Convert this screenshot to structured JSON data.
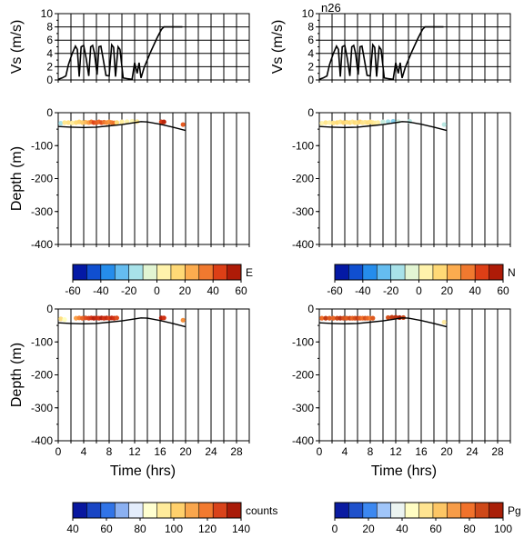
{
  "figure_title": "n26",
  "chart_data": [
    {
      "type": "line",
      "id": "vs-left",
      "ylabel": "Vs (m/s)",
      "ylim": [
        0,
        10
      ],
      "yticks": [
        0,
        2,
        4,
        6,
        8,
        10
      ],
      "xlim": [
        0,
        30
      ],
      "grid": true,
      "series": [
        {
          "values": [
            [
              0,
              0.1
            ],
            [
              0.6,
              0.3
            ],
            [
              1.2,
              0.6
            ],
            [
              1.6,
              2.3
            ],
            [
              2.2,
              4.0
            ],
            [
              2.7,
              5.1
            ],
            [
              3.0,
              4.6
            ],
            [
              3.3,
              0.5
            ],
            [
              3.6,
              5.0
            ],
            [
              4.0,
              5.2
            ],
            [
              4.4,
              3.2
            ],
            [
              4.8,
              0.6
            ],
            [
              5.1,
              5.0
            ],
            [
              5.4,
              5.2
            ],
            [
              5.7,
              4.0
            ],
            [
              6.1,
              0.8
            ],
            [
              6.4,
              5.0
            ],
            [
              6.7,
              5.1
            ],
            [
              7.0,
              3.5
            ],
            [
              7.5,
              0.7
            ],
            [
              8.0,
              0.6
            ],
            [
              8.4,
              5.3
            ],
            [
              8.7,
              4.9
            ],
            [
              9.0,
              0.5
            ],
            [
              9.4,
              5.0
            ],
            [
              9.7,
              4.6
            ],
            [
              10.2,
              0.3
            ],
            [
              10.8,
              0.2
            ],
            [
              11.6,
              0.1
            ],
            [
              12.0,
              2.6
            ],
            [
              12.4,
              1.0
            ],
            [
              12.7,
              2.6
            ],
            [
              13.0,
              0.3
            ],
            [
              13.5,
              1.9
            ],
            [
              14.5,
              4.2
            ],
            [
              15.5,
              6.3
            ],
            [
              16.2,
              7.6
            ],
            [
              16.6,
              8.0
            ],
            [
              17.5,
              8.0
            ],
            [
              19.5,
              8.0
            ]
          ]
        }
      ]
    },
    {
      "type": "line",
      "id": "vs-right",
      "ylabel": "Vs (m/s)",
      "ylim": [
        0,
        10
      ],
      "yticks": [
        0,
        2,
        4,
        6,
        8,
        10
      ],
      "xlim": [
        0,
        30
      ],
      "grid": true,
      "series": [
        {
          "values": [
            [
              0,
              0.1
            ],
            [
              0.6,
              0.3
            ],
            [
              1.2,
              0.6
            ],
            [
              1.6,
              2.3
            ],
            [
              2.2,
              4.0
            ],
            [
              2.7,
              5.1
            ],
            [
              3.0,
              4.6
            ],
            [
              3.3,
              0.5
            ],
            [
              3.6,
              5.0
            ],
            [
              4.0,
              5.2
            ],
            [
              4.4,
              3.2
            ],
            [
              4.8,
              0.6
            ],
            [
              5.1,
              5.0
            ],
            [
              5.4,
              5.2
            ],
            [
              5.7,
              4.0
            ],
            [
              6.1,
              0.8
            ],
            [
              6.4,
              5.0
            ],
            [
              6.7,
              5.1
            ],
            [
              7.0,
              3.5
            ],
            [
              7.5,
              0.7
            ],
            [
              8.0,
              0.6
            ],
            [
              8.4,
              5.3
            ],
            [
              8.7,
              4.9
            ],
            [
              9.0,
              0.5
            ],
            [
              9.4,
              5.0
            ],
            [
              9.7,
              4.6
            ],
            [
              10.2,
              0.3
            ],
            [
              10.8,
              0.2
            ],
            [
              11.6,
              0.1
            ],
            [
              12.0,
              2.6
            ],
            [
              12.4,
              1.0
            ],
            [
              12.7,
              2.6
            ],
            [
              13.0,
              0.3
            ],
            [
              13.5,
              1.9
            ],
            [
              14.5,
              4.2
            ],
            [
              15.5,
              6.3
            ],
            [
              16.2,
              7.6
            ],
            [
              16.6,
              8.0
            ],
            [
              17.5,
              8.0
            ],
            [
              19.5,
              8.0
            ]
          ]
        }
      ]
    },
    {
      "type": "scatter",
      "id": "depth-E",
      "ylabel": "Depth (m)",
      "ylim": [
        -400,
        0
      ],
      "yticks": [
        0,
        -100,
        -200,
        -300,
        -400
      ],
      "xlim": [
        0,
        30
      ],
      "grid": true,
      "colorbar": {
        "label": "E",
        "range": [
          -60,
          60
        ],
        "ticks": [
          -60,
          -40,
          -20,
          0,
          20,
          40,
          60
        ]
      },
      "bottom_line": [
        [
          0,
          -42
        ],
        [
          2,
          -44
        ],
        [
          4,
          -45
        ],
        [
          6,
          -44
        ],
        [
          8,
          -40
        ],
        [
          10,
          -36
        ],
        [
          12,
          -30
        ],
        [
          13,
          -27
        ],
        [
          14,
          -28
        ],
        [
          16,
          -35
        ],
        [
          18,
          -44
        ],
        [
          20,
          -54
        ]
      ],
      "points": [
        [
          0.4,
          -32,
          -15
        ],
        [
          1.0,
          -30,
          10
        ],
        [
          1.6,
          -30,
          12
        ],
        [
          2.2,
          -31,
          8
        ],
        [
          2.8,
          -30,
          14
        ],
        [
          3.3,
          -28,
          16
        ],
        [
          3.8,
          -30,
          18
        ],
        [
          4.3,
          -29,
          22
        ],
        [
          4.8,
          -30,
          28
        ],
        [
          5.2,
          -28,
          35
        ],
        [
          5.6,
          -30,
          44
        ],
        [
          6.0,
          -30,
          40
        ],
        [
          6.4,
          -28,
          38
        ],
        [
          6.8,
          -30,
          42
        ],
        [
          7.2,
          -29,
          36
        ],
        [
          7.6,
          -30,
          32
        ],
        [
          8.0,
          -28,
          30
        ],
        [
          8.4,
          -30,
          34
        ],
        [
          8.8,
          -31,
          36
        ],
        [
          9.2,
          -30,
          14
        ],
        [
          10.0,
          -28,
          8
        ],
        [
          10.8,
          -27,
          5
        ],
        [
          11.6,
          -26,
          3
        ],
        [
          12.4,
          -27,
          10
        ],
        [
          16.2,
          -28,
          46
        ],
        [
          16.6,
          -28,
          52
        ],
        [
          19.6,
          -36,
          40
        ]
      ]
    },
    {
      "type": "scatter",
      "id": "depth-N",
      "ylabel": "",
      "ylim": [
        -400,
        0
      ],
      "yticks": [
        0,
        -100,
        -200,
        -300,
        -400
      ],
      "xlim": [
        0,
        30
      ],
      "grid": true,
      "colorbar": {
        "label": "N",
        "range": [
          -60,
          60
        ],
        "ticks": [
          -60,
          -40,
          -20,
          0,
          20,
          40,
          60
        ]
      },
      "bottom_line": [
        [
          0,
          -42
        ],
        [
          2,
          -44
        ],
        [
          4,
          -45
        ],
        [
          6,
          -44
        ],
        [
          8,
          -40
        ],
        [
          10,
          -36
        ],
        [
          12,
          -30
        ],
        [
          13,
          -27
        ],
        [
          14,
          -28
        ],
        [
          16,
          -35
        ],
        [
          18,
          -44
        ],
        [
          20,
          -54
        ]
      ],
      "points": [
        [
          0.4,
          -32,
          5
        ],
        [
          1.0,
          -30,
          10
        ],
        [
          1.6,
          -30,
          6
        ],
        [
          2.2,
          -31,
          12
        ],
        [
          2.8,
          -30,
          14
        ],
        [
          3.3,
          -28,
          11
        ],
        [
          3.8,
          -30,
          16
        ],
        [
          4.3,
          -29,
          13
        ],
        [
          4.8,
          -30,
          15
        ],
        [
          5.2,
          -28,
          10
        ],
        [
          5.6,
          -30,
          14
        ],
        [
          6.0,
          -30,
          12
        ],
        [
          6.4,
          -28,
          16
        ],
        [
          6.8,
          -30,
          11
        ],
        [
          7.2,
          -29,
          10
        ],
        [
          7.6,
          -30,
          13
        ],
        [
          8.0,
          -28,
          12
        ],
        [
          8.4,
          -30,
          10
        ],
        [
          8.8,
          -31,
          8
        ],
        [
          9.2,
          -30,
          6
        ],
        [
          10.0,
          -28,
          -10
        ],
        [
          10.8,
          -27,
          -15
        ],
        [
          11.6,
          -26,
          -20
        ],
        [
          12.4,
          -27,
          -8
        ],
        [
          14.2,
          -26,
          -12
        ],
        [
          19.6,
          -36,
          -12
        ]
      ]
    },
    {
      "type": "scatter",
      "id": "depth-counts",
      "ylabel": "Depth (m)",
      "ylim": [
        -400,
        0
      ],
      "yticks": [
        0,
        -100,
        -200,
        -300,
        -400
      ],
      "xlim": [
        0,
        30
      ],
      "xticks": [
        0,
        4,
        8,
        12,
        16,
        20,
        24,
        28
      ],
      "xlabel": "Time (hrs)",
      "grid": true,
      "colorbar": {
        "label": "counts",
        "range": [
          40,
          140
        ],
        "ticks": [
          40,
          60,
          80,
          100,
          120,
          140
        ]
      },
      "bottom_line": [
        [
          0,
          -42
        ],
        [
          2,
          -44
        ],
        [
          4,
          -45
        ],
        [
          6,
          -44
        ],
        [
          8,
          -40
        ],
        [
          10,
          -36
        ],
        [
          12,
          -30
        ],
        [
          13,
          -27
        ],
        [
          14,
          -28
        ],
        [
          16,
          -35
        ],
        [
          18,
          -44
        ],
        [
          20,
          -54
        ]
      ],
      "points": [
        [
          0.4,
          -30,
          98
        ],
        [
          1.0,
          -32,
          88
        ],
        [
          2.8,
          -28,
          112
        ],
        [
          3.3,
          -27,
          118
        ],
        [
          3.8,
          -28,
          122
        ],
        [
          4.3,
          -27,
          126
        ],
        [
          4.8,
          -28,
          128
        ],
        [
          5.2,
          -27,
          130
        ],
        [
          5.6,
          -28,
          134
        ],
        [
          6.0,
          -27,
          132
        ],
        [
          6.4,
          -28,
          130
        ],
        [
          6.8,
          -27,
          134
        ],
        [
          7.2,
          -28,
          130
        ],
        [
          7.6,
          -27,
          132
        ],
        [
          8.0,
          -28,
          128
        ],
        [
          8.4,
          -27,
          132
        ],
        [
          8.8,
          -28,
          130
        ],
        [
          9.2,
          -27,
          126
        ],
        [
          16.2,
          -27,
          135
        ],
        [
          16.6,
          -27,
          130
        ],
        [
          19.6,
          -34,
          115
        ]
      ]
    },
    {
      "type": "scatter",
      "id": "depth-Pg",
      "ylabel": "",
      "ylim": [
        -400,
        0
      ],
      "yticks": [
        0,
        -100,
        -200,
        -300,
        -400
      ],
      "xlim": [
        0,
        30
      ],
      "xticks": [
        0,
        4,
        8,
        12,
        16,
        20,
        24,
        28
      ],
      "xlabel": "Time (hrs)",
      "grid": true,
      "colorbar": {
        "label": "Pg",
        "range": [
          0,
          100
        ],
        "ticks": [
          0,
          20,
          40,
          60,
          80,
          100
        ]
      },
      "bottom_line": [
        [
          0,
          -42
        ],
        [
          2,
          -44
        ],
        [
          4,
          -45
        ],
        [
          6,
          -44
        ],
        [
          8,
          -40
        ],
        [
          10,
          -36
        ],
        [
          12,
          -30
        ],
        [
          13,
          -27
        ],
        [
          14,
          -28
        ],
        [
          16,
          -35
        ],
        [
          18,
          -44
        ],
        [
          20,
          -54
        ]
      ],
      "points": [
        [
          0.4,
          -28,
          80
        ],
        [
          1.0,
          -28,
          90
        ],
        [
          1.6,
          -28,
          84
        ],
        [
          2.2,
          -28,
          82
        ],
        [
          2.8,
          -28,
          88
        ],
        [
          3.3,
          -28,
          92
        ],
        [
          3.8,
          -28,
          86
        ],
        [
          4.3,
          -28,
          84
        ],
        [
          4.8,
          -28,
          88
        ],
        [
          5.2,
          -28,
          82
        ],
        [
          5.6,
          -28,
          86
        ],
        [
          6.0,
          -28,
          90
        ],
        [
          6.4,
          -28,
          84
        ],
        [
          6.8,
          -28,
          80
        ],
        [
          7.2,
          -28,
          86
        ],
        [
          7.6,
          -28,
          82
        ],
        [
          8.0,
          -28,
          78
        ],
        [
          8.4,
          -28,
          84
        ],
        [
          10.8,
          -26,
          86
        ],
        [
          11.4,
          -25,
          90
        ],
        [
          12.0,
          -25,
          92
        ],
        [
          12.6,
          -26,
          96
        ],
        [
          13.2,
          -26,
          88
        ],
        [
          19.6,
          -40,
          52
        ]
      ]
    }
  ]
}
